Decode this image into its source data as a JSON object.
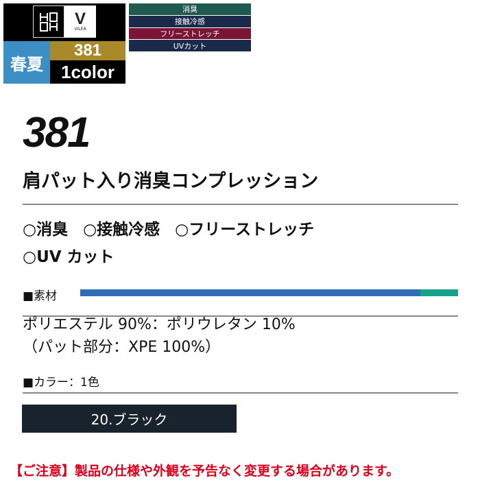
{
  "logo": {
    "brand_mark": "HDH",
    "partner": "VILEA",
    "season": "春夏",
    "product_number": "381",
    "color_count": "1color"
  },
  "tags": [
    {
      "label": "消臭",
      "color": "#1f5a50"
    },
    {
      "label": "接触冷感",
      "color": "#1b2a4a"
    },
    {
      "label": "フリーストレッチ",
      "color": "#7a1535"
    },
    {
      "label": "UVカット",
      "color": "#1b2a4a"
    }
  ],
  "product": {
    "number": "381",
    "name": "肩パット入り消臭コンプレッション"
  },
  "features": [
    "○消臭",
    "○接触冷感",
    "○フリーストレッチ",
    "○UV カット"
  ],
  "material": {
    "label": "■素材",
    "composition": [
      {
        "name": "ポリエステル",
        "percent": 90,
        "color": "#2e6db3"
      },
      {
        "name": "ポリウレタン",
        "percent": 10,
        "color": "#17a08a"
      }
    ],
    "line1": "ポリエステル 90%：ポリウレタン 10%",
    "line2": "（パット部分：XPE 100%）"
  },
  "colors": {
    "label": "■カラー：1色",
    "items": [
      {
        "label": "20.ブラック",
        "hex": "#18232e"
      }
    ]
  },
  "notice": "【ご注意】製品の仕様や外観を予告なく変更する場合があります。"
}
